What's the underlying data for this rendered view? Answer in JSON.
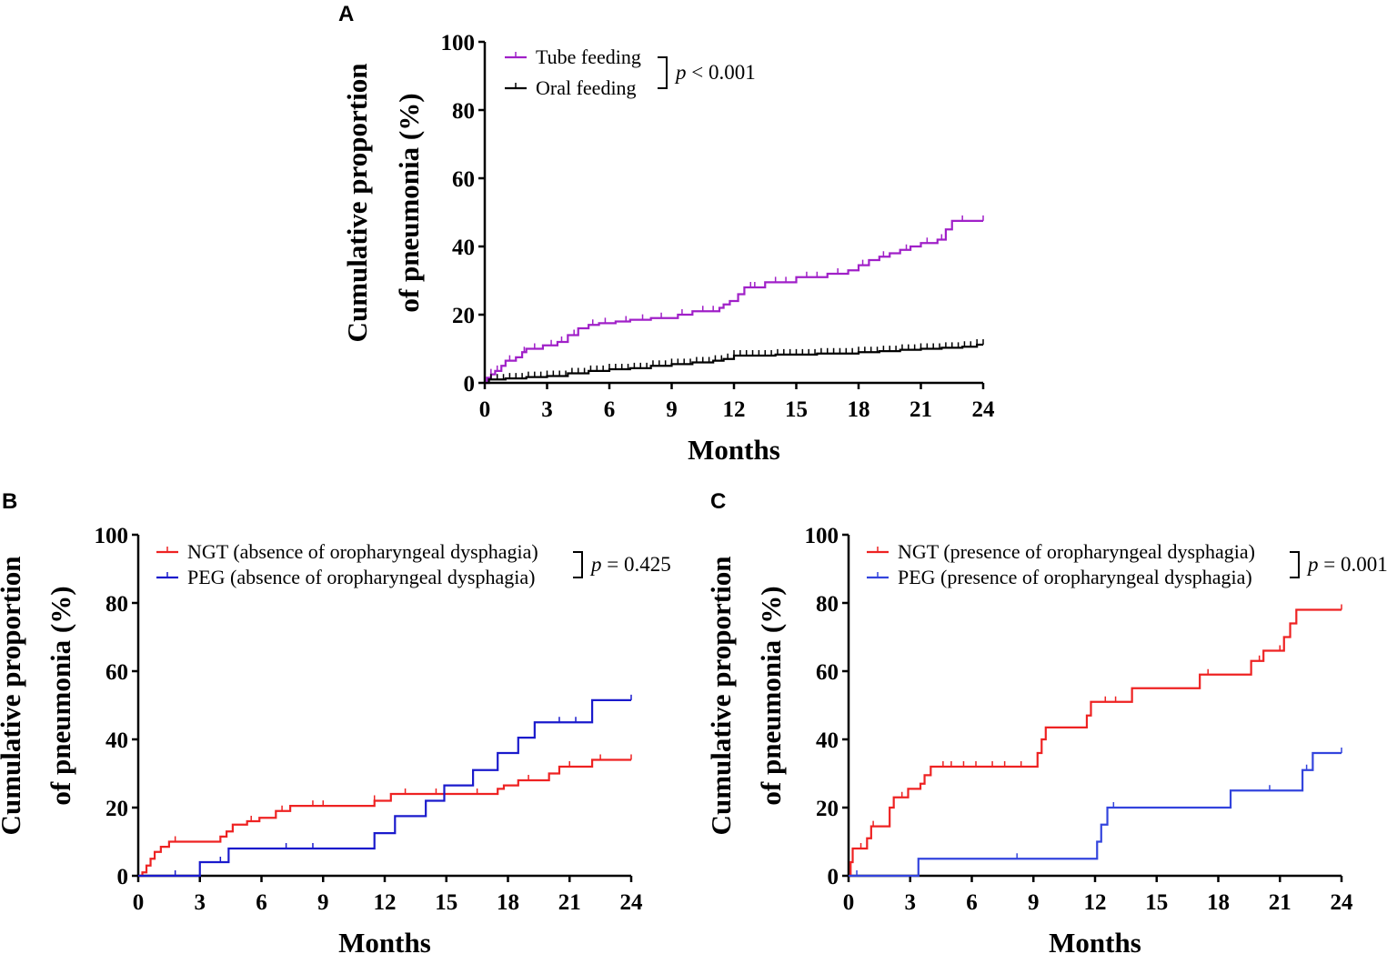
{
  "chart_data": [
    {
      "type": "line",
      "panel": "A",
      "xlabel": "Months",
      "ylabel_line1": "Cumulative proportion",
      "ylabel_line2": "of pneumonia (%)",
      "xticks": [
        0,
        3,
        6,
        9,
        12,
        15,
        18,
        21,
        24
      ],
      "yticks": [
        0,
        20,
        40,
        60,
        80,
        100
      ],
      "xlim": [
        0,
        24
      ],
      "ylim": [
        0,
        100
      ],
      "p_value": {
        "italic": "p",
        "text": " < 0.001"
      },
      "series": [
        {
          "name": "Tube feeding",
          "color": "#a020c8",
          "steps": [
            [
              0,
              0
            ],
            [
              0.1,
              1.5
            ],
            [
              0.3,
              2.5
            ],
            [
              0.5,
              3.5
            ],
            [
              0.8,
              5
            ],
            [
              1,
              6.5
            ],
            [
              1.5,
              7.5
            ],
            [
              1.8,
              9
            ],
            [
              2,
              10
            ],
            [
              2.8,
              11
            ],
            [
              3.5,
              12
            ],
            [
              4,
              14
            ],
            [
              4.5,
              16
            ],
            [
              5,
              17
            ],
            [
              5.5,
              17.5
            ],
            [
              6.3,
              18
            ],
            [
              7,
              18.5
            ],
            [
              8,
              19
            ],
            [
              9.3,
              20
            ],
            [
              10,
              21
            ],
            [
              11.3,
              22
            ],
            [
              11.5,
              23
            ],
            [
              11.8,
              24
            ],
            [
              12.2,
              26
            ],
            [
              12.5,
              28
            ],
            [
              13.5,
              29.5
            ],
            [
              15,
              31
            ],
            [
              16.5,
              32
            ],
            [
              17.5,
              33
            ],
            [
              18,
              34.5
            ],
            [
              18.5,
              36
            ],
            [
              19,
              37
            ],
            [
              19.5,
              38
            ],
            [
              20,
              39
            ],
            [
              20.5,
              40
            ],
            [
              21,
              41
            ],
            [
              21.8,
              42
            ],
            [
              22.2,
              45
            ],
            [
              22.5,
              47.5
            ]
          ],
          "censor": [
            0.3,
            0.6,
            1.2,
            1.9,
            2.4,
            3.2,
            3.7,
            4.3,
            5.2,
            5.8,
            6.8,
            7.6,
            8.5,
            9.5,
            10.5,
            11,
            12.8,
            13,
            14,
            14.5,
            15.5,
            16,
            17,
            18.2,
            19.2,
            20.3,
            21.3,
            22,
            23,
            24
          ]
        },
        {
          "name": "Oral feeding",
          "color": "#000000",
          "steps": [
            [
              0,
              0
            ],
            [
              0.2,
              1
            ],
            [
              1,
              1.3
            ],
            [
              2,
              1.7
            ],
            [
              3,
              2
            ],
            [
              4,
              2.8
            ],
            [
              5,
              3.5
            ],
            [
              6,
              4
            ],
            [
              7,
              4.3
            ],
            [
              8,
              5
            ],
            [
              9,
              5.5
            ],
            [
              10,
              6
            ],
            [
              11,
              6.5
            ],
            [
              11.5,
              7
            ],
            [
              12,
              8
            ],
            [
              14,
              8.3
            ],
            [
              16,
              8.6
            ],
            [
              18,
              9
            ],
            [
              19,
              9.3
            ],
            [
              20,
              9.7
            ],
            [
              21,
              10
            ],
            [
              22,
              10.3
            ],
            [
              23,
              10.6
            ],
            [
              23.7,
              11.2
            ]
          ],
          "censor": [
            0.3,
            0.6,
            0.9,
            1.2,
            1.5,
            1.8,
            2.1,
            2.4,
            2.7,
            3,
            3.3,
            3.6,
            3.9,
            4.2,
            4.5,
            4.8,
            5.1,
            5.4,
            5.7,
            6,
            6.3,
            6.6,
            6.9,
            7.2,
            7.5,
            7.8,
            8.1,
            8.4,
            8.7,
            9,
            9.3,
            9.6,
            9.9,
            10.2,
            10.5,
            10.8,
            11.1,
            11.4,
            11.7,
            12,
            12.3,
            12.6,
            12.9,
            13.2,
            13.5,
            13.8,
            14.1,
            14.4,
            14.7,
            15,
            15.3,
            15.6,
            15.9,
            16.2,
            16.5,
            16.8,
            17.1,
            17.4,
            17.7,
            18,
            18.3,
            18.6,
            18.9,
            19.2,
            19.5,
            19.8,
            20.1,
            20.4,
            20.7,
            21,
            21.3,
            21.6,
            21.9,
            22.2,
            22.5,
            22.8,
            23.1,
            23.4,
            23.7,
            24
          ]
        }
      ]
    },
    {
      "type": "line",
      "panel": "B",
      "xlabel": "Months",
      "ylabel_line1": "Cumulative proportion",
      "ylabel_line2": "of pneumonia (%)",
      "xticks": [
        0,
        3,
        6,
        9,
        12,
        15,
        18,
        21,
        24
      ],
      "yticks": [
        0,
        20,
        40,
        60,
        80,
        100
      ],
      "xlim": [
        0,
        24
      ],
      "ylim": [
        0,
        100
      ],
      "p_value": {
        "italic": "p",
        "text": " = 0.425"
      },
      "series": [
        {
          "name": "NGT (absence of oropharyngeal dysphagia)",
          "color": "#ee2222",
          "steps": [
            [
              0,
              0
            ],
            [
              0.2,
              1
            ],
            [
              0.4,
              3
            ],
            [
              0.6,
              5
            ],
            [
              0.8,
              7
            ],
            [
              1.1,
              8.5
            ],
            [
              1.5,
              10
            ],
            [
              4,
              11.5
            ],
            [
              4.3,
              13
            ],
            [
              4.6,
              15
            ],
            [
              5.3,
              16
            ],
            [
              5.9,
              17
            ],
            [
              6.7,
              19
            ],
            [
              7.4,
              20.5
            ],
            [
              11.5,
              22
            ],
            [
              12.3,
              24
            ],
            [
              17.5,
              25.5
            ],
            [
              17.8,
              26.5
            ],
            [
              18.5,
              28
            ],
            [
              20,
              30
            ],
            [
              20.5,
              32
            ],
            [
              22.1,
              34
            ]
          ],
          "censor": [
            1.8,
            5.5,
            7,
            8.5,
            9,
            11.5,
            13,
            14.5,
            16.5,
            19,
            21,
            22.5,
            24
          ]
        },
        {
          "name": "PEG (absence of oropharyngeal dysphagia)",
          "color": "#1a1acc",
          "steps": [
            [
              0,
              0
            ],
            [
              3,
              4
            ],
            [
              4.4,
              8
            ],
            [
              11.5,
              12.5
            ],
            [
              12.5,
              17.5
            ],
            [
              14,
              22
            ],
            [
              14.9,
              26.5
            ],
            [
              16.3,
              31
            ],
            [
              17.5,
              36
            ],
            [
              18.5,
              40.5
            ],
            [
              19.3,
              45
            ],
            [
              22.1,
              51.5
            ]
          ],
          "censor": [
            1.8,
            4,
            7.2,
            8.5,
            20.5,
            21.3,
            24
          ]
        }
      ]
    },
    {
      "type": "line",
      "panel": "C",
      "xlabel": "Months",
      "ylabel_line1": "Cumulative proportion",
      "ylabel_line2": "of pneumonia (%)",
      "xticks": [
        0,
        3,
        6,
        9,
        12,
        15,
        18,
        21,
        24
      ],
      "yticks": [
        0,
        20,
        40,
        60,
        80,
        100
      ],
      "xlim": [
        0,
        24
      ],
      "ylim": [
        0,
        100
      ],
      "p_value": {
        "italic": "p",
        "text": " = 0.001"
      },
      "series": [
        {
          "name": "NGT (presence of oropharyngeal dysphagia)",
          "color": "#ee2222",
          "steps": [
            [
              0,
              0
            ],
            [
              0.1,
              4
            ],
            [
              0.2,
              8
            ],
            [
              0.9,
              11
            ],
            [
              1.1,
              14.5
            ],
            [
              2,
              20
            ],
            [
              2.2,
              23
            ],
            [
              2.9,
              25.5
            ],
            [
              3.5,
              27
            ],
            [
              3.7,
              29.5
            ],
            [
              4,
              32
            ],
            [
              9.2,
              36
            ],
            [
              9.4,
              40
            ],
            [
              9.6,
              43.5
            ],
            [
              11.6,
              47
            ],
            [
              11.8,
              51
            ],
            [
              13.8,
              55
            ],
            [
              17.1,
              59
            ],
            [
              19.6,
              63
            ],
            [
              20.2,
              66
            ],
            [
              21.2,
              70
            ],
            [
              21.5,
              74
            ],
            [
              21.8,
              78
            ]
          ],
          "censor": [
            0.6,
            1.2,
            2.6,
            4.6,
            5,
            5.6,
            6.2,
            7,
            7.6,
            8.4,
            12.5,
            13,
            17.5,
            20,
            21,
            24
          ]
        },
        {
          "name": "PEG (presence of oropharyngeal dysphagia)",
          "color": "#3344dd",
          "steps": [
            [
              0,
              0
            ],
            [
              3.4,
              5
            ],
            [
              12.1,
              10
            ],
            [
              12.3,
              15
            ],
            [
              12.6,
              20
            ],
            [
              18.6,
              25
            ],
            [
              22.1,
              31
            ],
            [
              22.6,
              36
            ]
          ],
          "censor": [
            0.4,
            8.2,
            12.9,
            20.5,
            22.3,
            24
          ]
        }
      ]
    }
  ]
}
